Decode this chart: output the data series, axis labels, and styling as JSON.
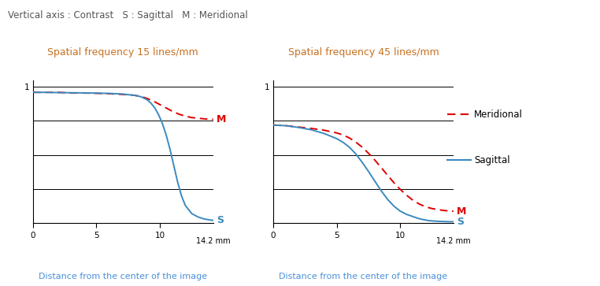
{
  "title_text": "Vertical axis : Contrast   S : Sagittal   M : Meridional",
  "title_color": "#555555",
  "title_fontsize": 8.5,
  "subtitle1": "Spatial frequency 15 lines/mm",
  "subtitle2": "Spatial frequency 45 lines/mm",
  "subtitle_color": "#c87020",
  "subtitle_fontsize": 9,
  "xlabel": "Distance from the center of the image",
  "xlabel_color": "#4a90d9",
  "xlabel_fontsize": 8,
  "xmax": 14.2,
  "xticks": [
    0,
    5,
    10
  ],
  "yticks": [
    0,
    0.25,
    0.5,
    0.75,
    1.0
  ],
  "meridional_color": "#dd0000",
  "sagittal_color": "#3a8abf",
  "label_M_color": "#dd0000",
  "label_S_color": "#3a8abf",
  "background_color": "#ffffff",
  "legend_meridional": "Meridional",
  "legend_sagittal": "Sagittal",
  "legend_fontsize": 8.5,
  "annotation_fontsize": 9,
  "lp15_meridional_x": [
    0,
    1,
    2,
    3,
    4,
    5,
    6,
    7,
    8,
    8.5,
    9.0,
    9.5,
    10.0,
    10.5,
    11.0,
    11.5,
    12.0,
    12.5,
    13.0,
    13.5,
    14.0,
    14.2
  ],
  "lp15_meridional_y": [
    0.96,
    0.96,
    0.96,
    0.955,
    0.955,
    0.953,
    0.95,
    0.945,
    0.938,
    0.93,
    0.915,
    0.895,
    0.87,
    0.845,
    0.82,
    0.8,
    0.785,
    0.775,
    0.77,
    0.765,
    0.762,
    0.762
  ],
  "lp15_sagittal_x": [
    0,
    1,
    2,
    3,
    4,
    5,
    6,
    7,
    8,
    8.5,
    9.0,
    9.3,
    9.6,
    9.9,
    10.2,
    10.5,
    10.8,
    11.1,
    11.4,
    11.7,
    12.0,
    12.5,
    13.0,
    13.5,
    14.0,
    14.2
  ],
  "lp15_sagittal_y": [
    0.96,
    0.96,
    0.958,
    0.957,
    0.956,
    0.954,
    0.952,
    0.948,
    0.938,
    0.928,
    0.905,
    0.88,
    0.845,
    0.795,
    0.73,
    0.645,
    0.54,
    0.42,
    0.3,
    0.2,
    0.13,
    0.07,
    0.045,
    0.03,
    0.022,
    0.02
  ],
  "lp45_meridional_x": [
    0,
    1,
    2,
    3,
    4,
    5,
    5.5,
    6.0,
    6.5,
    7.0,
    7.5,
    8.0,
    8.5,
    9.0,
    9.5,
    10.0,
    10.5,
    11.0,
    11.5,
    12.0,
    12.5,
    13.0,
    13.5,
    14.0,
    14.2
  ],
  "lp45_meridional_y": [
    0.72,
    0.715,
    0.705,
    0.695,
    0.682,
    0.662,
    0.647,
    0.625,
    0.595,
    0.558,
    0.513,
    0.463,
    0.408,
    0.352,
    0.297,
    0.248,
    0.205,
    0.168,
    0.14,
    0.12,
    0.107,
    0.098,
    0.092,
    0.088,
    0.087
  ],
  "lp45_sagittal_x": [
    0,
    1,
    2,
    3,
    4,
    5,
    5.5,
    6.0,
    6.5,
    7.0,
    7.5,
    8.0,
    8.5,
    9.0,
    9.5,
    10.0,
    10.5,
    11.0,
    11.3,
    11.6,
    11.9,
    12.2,
    12.5,
    13.0,
    13.5,
    14.0,
    14.2
  ],
  "lp45_sagittal_y": [
    0.72,
    0.715,
    0.702,
    0.685,
    0.658,
    0.62,
    0.593,
    0.557,
    0.508,
    0.447,
    0.38,
    0.308,
    0.238,
    0.175,
    0.125,
    0.088,
    0.064,
    0.048,
    0.038,
    0.03,
    0.024,
    0.019,
    0.016,
    0.013,
    0.011,
    0.01,
    0.01
  ]
}
